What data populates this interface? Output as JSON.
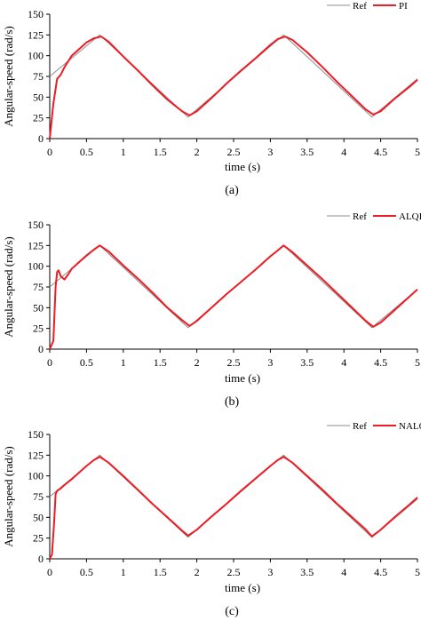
{
  "chart_data": [
    {
      "type": "line",
      "caption": "(a)",
      "xlabel": "time (s)",
      "ylabel": "Angular-speed (rad/s)",
      "xlim": [
        0,
        5
      ],
      "ylim": [
        0,
        150
      ],
      "xticks": [
        "0",
        "0.5",
        "1",
        "1.5",
        "2",
        "2.5",
        "3",
        "3.5",
        "4",
        "4.5",
        "5"
      ],
      "yticks": [
        "0",
        "25",
        "50",
        "75",
        "100",
        "125",
        "150"
      ],
      "legend_position": "top-right",
      "grid": false,
      "series": [
        {
          "name": "Ref",
          "color": "#8c8c8c",
          "x": [
            0,
            0.68,
            1.88,
            3.18,
            4.38,
            5
          ],
          "y": [
            75,
            125,
            26,
            125,
            26,
            72
          ]
        },
        {
          "name": "PI",
          "color": "#ee1c24",
          "x": [
            0,
            0.05,
            0.1,
            0.15,
            0.2,
            0.25,
            0.3,
            0.4,
            0.5,
            0.6,
            0.7,
            0.8,
            1.0,
            1.2,
            1.4,
            1.6,
            1.8,
            1.9,
            2.0,
            2.2,
            2.4,
            2.6,
            2.8,
            3.0,
            3.1,
            3.2,
            3.3,
            3.5,
            3.7,
            3.9,
            4.1,
            4.3,
            4.4,
            4.5,
            4.7,
            4.9,
            5.0
          ],
          "y": [
            0,
            42,
            72,
            77,
            86,
            93,
            100,
            108,
            116,
            121,
            123,
            117,
            99,
            82,
            64,
            47,
            33,
            28,
            33,
            49,
            66,
            82,
            97,
            113,
            120,
            123,
            119,
            104,
            87,
            69,
            52,
            35,
            29,
            33,
            49,
            63,
            71
          ]
        }
      ]
    },
    {
      "type": "line",
      "caption": "(b)",
      "xlabel": "time (s)",
      "ylabel": "Angular-speed (rad/s)",
      "xlim": [
        0,
        5
      ],
      "ylim": [
        0,
        150
      ],
      "xticks": [
        "0",
        "0.5",
        "1",
        "1.5",
        "2",
        "2.5",
        "3",
        "3.5",
        "4",
        "4.5",
        "5"
      ],
      "yticks": [
        "0",
        "25",
        "50",
        "75",
        "100",
        "125",
        "150"
      ],
      "legend_position": "top-right",
      "grid": false,
      "series": [
        {
          "name": "Ref",
          "color": "#8c8c8c",
          "x": [
            0,
            0.68,
            1.88,
            3.18,
            4.38,
            5
          ],
          "y": [
            75,
            125,
            26,
            125,
            26,
            72
          ]
        },
        {
          "name": "ALQI",
          "color": "#ee1c24",
          "x": [
            0,
            0.05,
            0.08,
            0.1,
            0.12,
            0.15,
            0.2,
            0.25,
            0.3,
            0.4,
            0.5,
            0.6,
            0.68,
            0.8,
            1.0,
            1.2,
            1.4,
            1.6,
            1.8,
            1.9,
            2.0,
            2.2,
            2.4,
            2.6,
            2.8,
            3.0,
            3.1,
            3.18,
            3.3,
            3.5,
            3.7,
            3.9,
            4.1,
            4.3,
            4.4,
            4.5,
            4.7,
            4.9,
            5.0
          ],
          "y": [
            0,
            10,
            75,
            93,
            95,
            88,
            84,
            90,
            97,
            105,
            113,
            120,
            125,
            118,
            101,
            85,
            68,
            50,
            35,
            28,
            34,
            50,
            66,
            81,
            96,
            112,
            119,
            125,
            117,
            101,
            85,
            68,
            51,
            34,
            27,
            32,
            48,
            64,
            72
          ]
        }
      ]
    },
    {
      "type": "line",
      "caption": "(c)",
      "xlabel": "time (s)",
      "ylabel": "Angular-speed (rad/s)",
      "xlim": [
        0,
        5
      ],
      "ylim": [
        0,
        150
      ],
      "xticks": [
        "0",
        "0.5",
        "1",
        "1.5",
        "2",
        "2.5",
        "3",
        "3.5",
        "4",
        "4.5",
        "5"
      ],
      "yticks": [
        "0",
        "25",
        "50",
        "75",
        "100",
        "125",
        "150"
      ],
      "legend_position": "top-right",
      "grid": false,
      "series": [
        {
          "name": "Ref",
          "color": "#8c8c8c",
          "x": [
            0,
            0.68,
            1.88,
            3.18,
            4.38,
            5
          ],
          "y": [
            75,
            125,
            26,
            125,
            26,
            72
          ]
        },
        {
          "name": "NALQI",
          "color": "#ee1c24",
          "x": [
            0,
            0.03,
            0.06,
            0.08,
            0.1,
            0.15,
            0.2,
            0.3,
            0.4,
            0.5,
            0.6,
            0.68,
            0.8,
            1.0,
            1.2,
            1.4,
            1.6,
            1.8,
            1.88,
            2.0,
            2.2,
            2.4,
            2.6,
            2.8,
            3.0,
            3.1,
            3.18,
            3.3,
            3.5,
            3.7,
            3.9,
            4.1,
            4.3,
            4.38,
            4.5,
            4.7,
            4.9,
            5.0
          ],
          "y": [
            0,
            5,
            45,
            78,
            82,
            85,
            89,
            96,
            104,
            112,
            119,
            123,
            116,
            100,
            83,
            66,
            50,
            34,
            28,
            35,
            51,
            66,
            82,
            97,
            112,
            119,
            123,
            116,
            100,
            84,
            67,
            51,
            35,
            27,
            35,
            51,
            66,
            74
          ]
        }
      ]
    }
  ]
}
